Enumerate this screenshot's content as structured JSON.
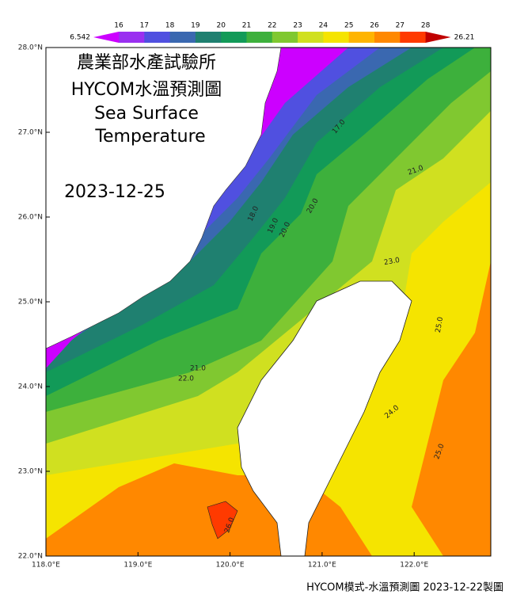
{
  "title": [
    "農業部水產試驗所",
    "HYCOM水溫預測圖",
    "Sea Surface",
    "Temperature"
  ],
  "date": "2023-12-25",
  "colorbar": {
    "min_label": "6.542",
    "max_label": "26.21",
    "ticks": [
      16,
      17,
      18,
      19,
      20,
      21,
      22,
      23,
      24,
      25,
      26,
      27,
      28
    ],
    "colors": [
      "#cc00ff",
      "#9a30f0",
      "#5050e0",
      "#3a68b0",
      "#1f8070",
      "#129a58",
      "#3db03c",
      "#80c830",
      "#d0e020",
      "#f5e400",
      "#ffb400",
      "#ff8800",
      "#ff3a00",
      "#c00000"
    ]
  },
  "lat_labels": [
    "28.0°N",
    "27.0°N",
    "26.0°N",
    "25.0°N",
    "24.0°N",
    "23.0°N",
    "22.0°N"
  ],
  "lon_labels": [
    "118.0°E",
    "119.0°E",
    "120.0°E",
    "121.0°E",
    "122.0°E"
  ],
  "contour_labels": [
    "17.0",
    "18.0",
    "19.0",
    "20.0",
    "20.0",
    "21.0",
    "21.0",
    "22.0",
    "23.0",
    "24.0",
    "25.0",
    "25.0",
    "26.0"
  ],
  "footer": "HYCOM模式-水溫預測圖 2023-12-22製圖"
}
